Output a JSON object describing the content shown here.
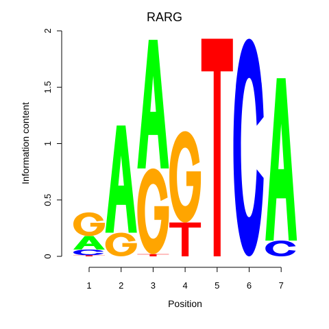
{
  "chart_data": {
    "type": "sequence-logo",
    "title": "RARG",
    "xlabel": "Position",
    "ylabel": "Information content",
    "ylim": [
      0,
      2
    ],
    "yticks": [
      "0",
      "0.5",
      "1",
      "1.5",
      "2"
    ],
    "positions": [
      "1",
      "2",
      "3",
      "4",
      "5",
      "6",
      "7"
    ],
    "letter_colors": {
      "A": "#00ff00",
      "C": "#0000ff",
      "G": "#ffa500",
      "T": "#ff0000"
    },
    "stacks": [
      [
        {
          "letter": "T",
          "value": 0.01
        },
        {
          "letter": "C",
          "value": 0.05
        },
        {
          "letter": "A",
          "value": 0.12
        },
        {
          "letter": "G",
          "value": 0.21
        }
      ],
      [
        {
          "letter": "G",
          "value": 0.21
        },
        {
          "letter": "A",
          "value": 0.95
        }
      ],
      [
        {
          "letter": "T",
          "value": 0.02
        },
        {
          "letter": "G",
          "value": 0.76
        },
        {
          "letter": "A",
          "value": 1.14
        }
      ],
      [
        {
          "letter": "T",
          "value": 0.3
        },
        {
          "letter": "G",
          "value": 0.81
        }
      ],
      [
        {
          "letter": "T",
          "value": 1.93
        }
      ],
      [
        {
          "letter": "C",
          "value": 1.93
        }
      ],
      [
        {
          "letter": "C",
          "value": 0.14
        },
        {
          "letter": "A",
          "value": 1.44
        }
      ]
    ]
  }
}
